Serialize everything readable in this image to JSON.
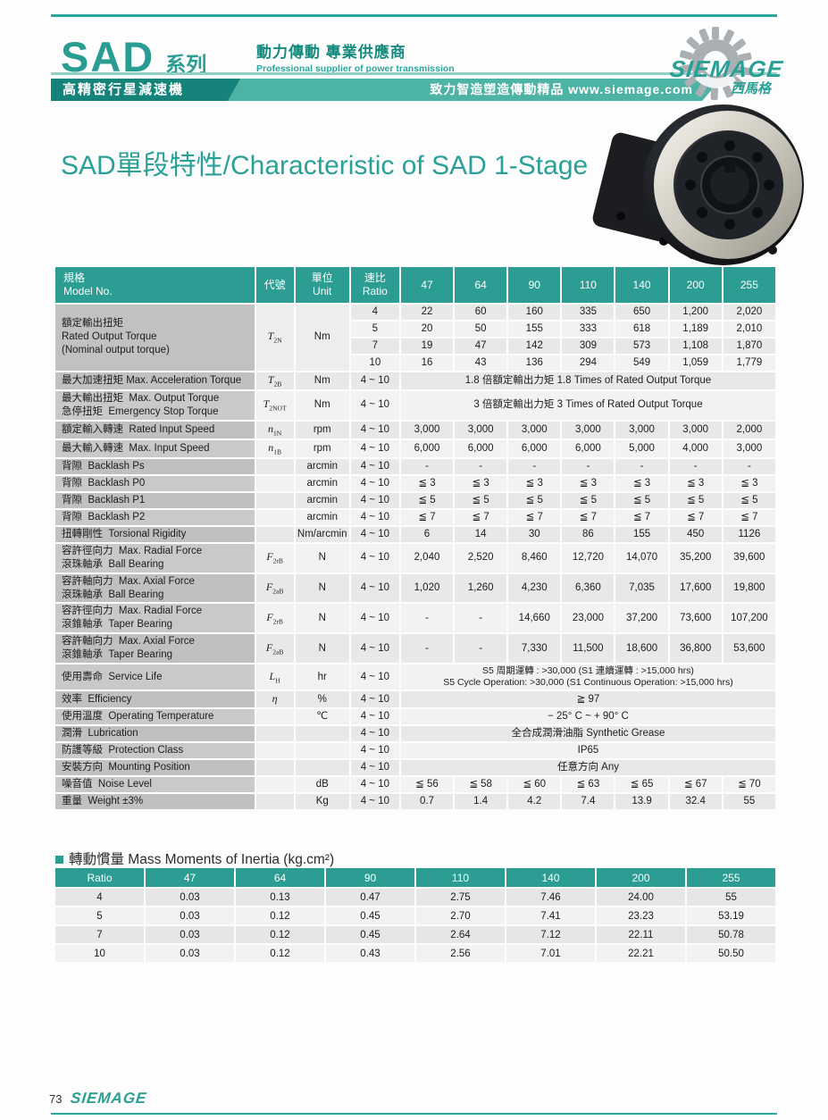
{
  "header": {
    "series": "SAD",
    "series_suffix": "系列",
    "tagline_zh": "動力傳動 專業供應商",
    "tagline_en": "Professional supplier of power transmission",
    "band_left": "高精密行星減速機",
    "band_right": "致力智造塑造傳動精品  www.siemage.com",
    "brand": "SIEMAGE",
    "brand_zh": "西馬格"
  },
  "title": "SAD單段特性/Characteristic of SAD 1-Stage",
  "spec_table": {
    "columns": {
      "model": [
        "規格",
        "Model No."
      ],
      "code": [
        "代號"
      ],
      "unit": [
        "單位",
        "Unit"
      ],
      "ratio": [
        "速比",
        "Ratio"
      ],
      "sizes": [
        "47",
        "64",
        "90",
        "110",
        "140",
        "200",
        "255"
      ]
    },
    "rows": [
      {
        "type": "group",
        "label": [
          "額定輸出扭矩",
          "Rated Output Torque",
          "(Nominal output torque)"
        ],
        "code": "T",
        "sub": "2N",
        "unit": "Nm",
        "subrows": [
          {
            "ratio": "4",
            "cells": [
              "22",
              "60",
              "160",
              "335",
              "650",
              "1,200",
              "2,020"
            ]
          },
          {
            "ratio": "5",
            "cells": [
              "20",
              "50",
              "155",
              "333",
              "618",
              "1,189",
              "2,010"
            ]
          },
          {
            "ratio": "7",
            "cells": [
              "19",
              "47",
              "142",
              "309",
              "573",
              "1,108",
              "1,870"
            ]
          },
          {
            "ratio": "10",
            "cells": [
              "16",
              "43",
              "136",
              "294",
              "549",
              "1,059",
              "1,779"
            ]
          }
        ]
      },
      {
        "type": "merged",
        "label": [
          "最大加速扭矩 Max. Acceleration Torque"
        ],
        "code": "T",
        "sub": "2B",
        "unit": "Nm",
        "ratio": "4 ~ 10",
        "merged": [
          "1.8 倍額定輸出力矩  1.8 Times of Rated Output Torque"
        ]
      },
      {
        "type": "merged",
        "label": [
          "最大輸出扭矩  Max. Output Torque",
          "急停扭矩  Emergency Stop Torque"
        ],
        "code": "T",
        "sub": "2NOT",
        "unit": "Nm",
        "ratio": "4 ~ 10",
        "merged": [
          "3 倍額定輸出力矩  3 Times of Rated Output Torque"
        ]
      },
      {
        "type": "cells",
        "label": [
          "額定輸入轉速  Rated Input Speed"
        ],
        "code": "n",
        "sub": "1N",
        "unit": "rpm",
        "ratio": "4 ~ 10",
        "cells": [
          "3,000",
          "3,000",
          "3,000",
          "3,000",
          "3,000",
          "3,000",
          "2,000"
        ]
      },
      {
        "type": "cells",
        "label": [
          "最大輸入轉速  Max. Input Speed"
        ],
        "code": "n",
        "sub": "1B",
        "unit": "rpm",
        "ratio": "4 ~ 10",
        "cells": [
          "6,000",
          "6,000",
          "6,000",
          "6,000",
          "5,000",
          "4,000",
          "3,000"
        ]
      },
      {
        "type": "cells",
        "label": [
          "背隙  Backlash Ps"
        ],
        "code": "",
        "sub": "",
        "unit": "arcmin",
        "ratio": "4 ~ 10",
        "cells": [
          "-",
          "-",
          "-",
          "-",
          "-",
          "-",
          "-"
        ]
      },
      {
        "type": "cells",
        "label": [
          "背隙  Backlash P0"
        ],
        "code": "",
        "sub": "",
        "unit": "arcmin",
        "ratio": "4 ~ 10",
        "cells": [
          "≦ 3",
          "≦ 3",
          "≦ 3",
          "≦ 3",
          "≦ 3",
          "≦ 3",
          "≦ 3"
        ]
      },
      {
        "type": "cells",
        "label": [
          "背隙  Backlash P1"
        ],
        "code": "",
        "sub": "",
        "unit": "arcmin",
        "ratio": "4 ~ 10",
        "cells": [
          "≦ 5",
          "≦ 5",
          "≦ 5",
          "≦ 5",
          "≦ 5",
          "≦ 5",
          "≦ 5"
        ]
      },
      {
        "type": "cells",
        "label": [
          "背隙  Backlash P2"
        ],
        "code": "",
        "sub": "",
        "unit": "arcmin",
        "ratio": "4 ~ 10",
        "cells": [
          "≦ 7",
          "≦ 7",
          "≦ 7",
          "≦ 7",
          "≦ 7",
          "≦ 7",
          "≦ 7"
        ]
      },
      {
        "type": "cells",
        "label": [
          "扭轉剛性  Torsional Rigidity"
        ],
        "code": "",
        "sub": "",
        "unit": "Nm/arcmin",
        "ratio": "4 ~ 10",
        "cells": [
          "6",
          "14",
          "30",
          "86",
          "155",
          "450",
          "1126"
        ]
      },
      {
        "type": "cells",
        "label": [
          "容許徑向力  Max. Radial Force",
          "滾珠軸承  Ball Bearing"
        ],
        "code": "F",
        "sub": "2rB",
        "unit": "N",
        "ratio": "4 ~ 10",
        "cells": [
          "2,040",
          "2,520",
          "8,460",
          "12,720",
          "14,070",
          "35,200",
          "39,600"
        ]
      },
      {
        "type": "cells",
        "label": [
          "容許軸向力  Max. Axial Force",
          "滾珠軸承  Ball Bearing"
        ],
        "code": "F",
        "sub": "2aB",
        "unit": "N",
        "ratio": "4 ~ 10",
        "cells": [
          "1,020",
          "1,260",
          "4,230",
          "6,360",
          "7,035",
          "17,600",
          "19,800"
        ]
      },
      {
        "type": "cells",
        "label": [
          "容許徑向力  Max. Radial Force",
          "滾錐軸承  Taper Bearing"
        ],
        "code": "F",
        "sub": "2rB",
        "unit": "N",
        "ratio": "4 ~ 10",
        "cells": [
          "-",
          "-",
          "14,660",
          "23,000",
          "37,200",
          "73,600",
          "107,200"
        ]
      },
      {
        "type": "cells",
        "label": [
          "容許軸向力  Max. Axial Force",
          "滾錐軸承  Taper Bearing"
        ],
        "code": "F",
        "sub": "2aB",
        "unit": "N",
        "ratio": "4 ~ 10",
        "cells": [
          "-",
          "-",
          "7,330",
          "11,500",
          "18,600",
          "36,800",
          "53,600"
        ]
      },
      {
        "type": "merged",
        "label": [
          "使用壽命  Service Life"
        ],
        "code": "L",
        "sub": "H",
        "unit": "hr",
        "ratio": "4 ~ 10",
        "small": true,
        "merged": [
          "S5 周期運轉 : >30,000 (S1 連續運轉 : >15,000 hrs)",
          "S5 Cycle Operation: >30,000 (S1 Continuous Operation: >15,000 hrs)"
        ]
      },
      {
        "type": "merged",
        "label": [
          "效率  Efficiency"
        ],
        "code": "η",
        "sub": "",
        "unit": "%",
        "ratio": "4 ~ 10",
        "merged": [
          "≧ 97"
        ]
      },
      {
        "type": "merged",
        "label": [
          "使用溫度  Operating Temperature"
        ],
        "code": "",
        "sub": "",
        "unit": "℃",
        "ratio": "4 ~ 10",
        "merged": [
          "− 25° C ~ + 90° C"
        ]
      },
      {
        "type": "merged",
        "label": [
          "潤滑  Lubrication"
        ],
        "code": "",
        "sub": "",
        "unit": "",
        "ratio": "4 ~ 10",
        "merged": [
          "全合成潤滑油脂  Synthetic Grease"
        ]
      },
      {
        "type": "merged",
        "label": [
          "防護等級  Protection Class"
        ],
        "code": "",
        "sub": "",
        "unit": "",
        "ratio": "4 ~ 10",
        "merged": [
          "IP65"
        ]
      },
      {
        "type": "merged",
        "label": [
          "安裝方向  Mounting Position"
        ],
        "code": "",
        "sub": "",
        "unit": "",
        "ratio": "4 ~ 10",
        "merged": [
          "任意方向  Any"
        ]
      },
      {
        "type": "cells",
        "label": [
          "噪音值  Noise Level"
        ],
        "code": "",
        "sub": "",
        "unit": "dB",
        "ratio": "4 ~ 10",
        "cells": [
          "≦ 56",
          "≦ 58",
          "≦ 60",
          "≦ 63",
          "≦ 65",
          "≦ 67",
          "≦ 70"
        ]
      },
      {
        "type": "cells",
        "label": [
          "重量  Weight ±3%"
        ],
        "code": "",
        "sub": "",
        "unit": "Kg",
        "ratio": "4 ~ 10",
        "cells": [
          "0.7",
          "1.4",
          "4.2",
          "7.4",
          "13.9",
          "32.4",
          "55"
        ]
      }
    ]
  },
  "inertia_table": {
    "title": "轉動慣量 Mass Moments of Inertia (kg.cm²)",
    "columns": [
      "Ratio",
      "47",
      "64",
      "90",
      "110",
      "140",
      "200",
      "255"
    ],
    "rows": [
      [
        "4",
        "0.03",
        "0.13",
        "0.47",
        "2.75",
        "7.46",
        "24.00",
        "55"
      ],
      [
        "5",
        "0.03",
        "0.12",
        "0.45",
        "2.70",
        "7.41",
        "23.23",
        "53.19"
      ],
      [
        "7",
        "0.03",
        "0.12",
        "0.45",
        "2.64",
        "7.12",
        "22.11",
        "50.78"
      ],
      [
        "10",
        "0.03",
        "0.12",
        "0.43",
        "2.56",
        "7.01",
        "22.21",
        "50.50"
      ]
    ]
  },
  "footer": {
    "page": "73",
    "brand": "SIEMAGE"
  },
  "colors": {
    "teal_header": "#2b9d92",
    "band_dark": "#15837a",
    "band_light": "#4db3a5",
    "title_teal": "#2aa198",
    "label_gray": "#c2c2c2",
    "cell_dark": "#e8e8e8",
    "cell_light": "#f2f2f2"
  }
}
